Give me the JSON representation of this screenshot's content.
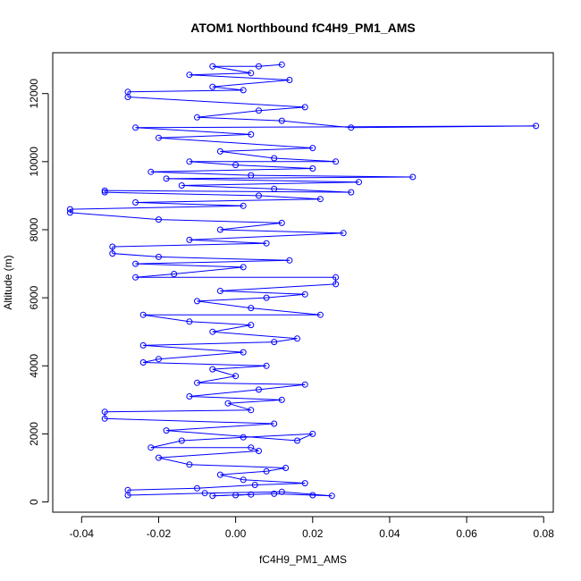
{
  "chart_data": {
    "type": "scatter",
    "title": "ATOM1 Northbound fC4H9_PM1_AMS",
    "xlabel": "fC4H9_PM1_AMS",
    "ylabel": "Altitude (m)",
    "xlim": [
      -0.0475,
      0.0825
    ],
    "ylim": [
      -300,
      13200
    ],
    "x_ticks": [
      -0.04,
      -0.02,
      0.0,
      0.02,
      0.04,
      0.06,
      0.08
    ],
    "x_tick_labels": [
      "-0.04",
      "-0.02",
      "0.00",
      "0.02",
      "0.04",
      "0.06",
      "0.08"
    ],
    "y_ticks": [
      0,
      2000,
      4000,
      6000,
      8000,
      10000,
      12000
    ],
    "y_tick_labels": [
      "0",
      "2000",
      "4000",
      "6000",
      "8000",
      "10000",
      "12000"
    ],
    "grid": false,
    "marker": "open-circle",
    "connected": true,
    "color": "#0000ff",
    "series": [
      {
        "values": [
          [
            0.0,
            200
          ],
          [
            0.004,
            220
          ],
          [
            -0.006,
            180
          ],
          [
            0.01,
            240
          ],
          [
            0.02,
            200
          ],
          [
            0.025,
            180
          ],
          [
            0.012,
            300
          ],
          [
            -0.008,
            260
          ],
          [
            -0.028,
            200
          ],
          [
            -0.028,
            350
          ],
          [
            -0.01,
            400
          ],
          [
            0.005,
            500
          ],
          [
            0.018,
            550
          ],
          [
            0.002,
            650
          ],
          [
            -0.004,
            800
          ],
          [
            0.008,
            900
          ],
          [
            0.013,
            1000
          ],
          [
            -0.012,
            1100
          ],
          [
            -0.02,
            1300
          ],
          [
            0.006,
            1500
          ],
          [
            0.004,
            1600
          ],
          [
            -0.022,
            1600
          ],
          [
            -0.014,
            1800
          ],
          [
            0.002,
            1900
          ],
          [
            0.02,
            2000
          ],
          [
            0.016,
            1800
          ],
          [
            -0.018,
            2100
          ],
          [
            0.01,
            2300
          ],
          [
            -0.034,
            2450
          ],
          [
            -0.034,
            2650
          ],
          [
            0.004,
            2700
          ],
          [
            -0.002,
            2900
          ],
          [
            0.012,
            3000
          ],
          [
            -0.012,
            3100
          ],
          [
            0.006,
            3300
          ],
          [
            0.018,
            3450
          ],
          [
            -0.01,
            3500
          ],
          [
            0.0,
            3700
          ],
          [
            -0.006,
            3900
          ],
          [
            0.008,
            4000
          ],
          [
            -0.024,
            4100
          ],
          [
            -0.02,
            4200
          ],
          [
            0.002,
            4400
          ],
          [
            -0.024,
            4600
          ],
          [
            0.01,
            4700
          ],
          [
            0.016,
            4800
          ],
          [
            -0.006,
            5000
          ],
          [
            0.004,
            5200
          ],
          [
            -0.012,
            5300
          ],
          [
            -0.024,
            5500
          ],
          [
            0.022,
            5500
          ],
          [
            0.004,
            5700
          ],
          [
            -0.01,
            5900
          ],
          [
            0.008,
            6000
          ],
          [
            0.018,
            6100
          ],
          [
            -0.004,
            6200
          ],
          [
            0.026,
            6400
          ],
          [
            0.026,
            6600
          ],
          [
            -0.026,
            6600
          ],
          [
            -0.016,
            6700
          ],
          [
            0.002,
            6900
          ],
          [
            -0.026,
            7000
          ],
          [
            0.014,
            7100
          ],
          [
            -0.02,
            7200
          ],
          [
            -0.032,
            7300
          ],
          [
            -0.032,
            7500
          ],
          [
            0.008,
            7600
          ],
          [
            -0.012,
            7700
          ],
          [
            0.028,
            7900
          ],
          [
            -0.004,
            8000
          ],
          [
            0.012,
            8200
          ],
          [
            -0.02,
            8300
          ],
          [
            -0.043,
            8500
          ],
          [
            -0.043,
            8600
          ],
          [
            0.002,
            8700
          ],
          [
            -0.026,
            8800
          ],
          [
            0.022,
            8900
          ],
          [
            0.006,
            9000
          ],
          [
            -0.034,
            9100
          ],
          [
            -0.034,
            9150
          ],
          [
            0.03,
            9100
          ],
          [
            0.01,
            9200
          ],
          [
            -0.014,
            9300
          ],
          [
            0.032,
            9400
          ],
          [
            -0.018,
            9500
          ],
          [
            0.046,
            9550
          ],
          [
            0.004,
            9600
          ],
          [
            -0.022,
            9700
          ],
          [
            0.02,
            9800
          ],
          [
            0.0,
            9900
          ],
          [
            -0.012,
            10000
          ],
          [
            0.026,
            10000
          ],
          [
            0.01,
            10100
          ],
          [
            -0.004,
            10300
          ],
          [
            0.02,
            10400
          ],
          [
            -0.02,
            10700
          ],
          [
            0.004,
            10800
          ],
          [
            -0.026,
            11000
          ],
          [
            0.078,
            11050
          ],
          [
            0.03,
            11000
          ],
          [
            0.012,
            11200
          ],
          [
            -0.01,
            11300
          ],
          [
            0.006,
            11500
          ],
          [
            0.018,
            11600
          ],
          [
            -0.028,
            11900
          ],
          [
            -0.028,
            12050
          ],
          [
            0.002,
            12100
          ],
          [
            -0.006,
            12200
          ],
          [
            0.014,
            12400
          ],
          [
            -0.012,
            12550
          ],
          [
            0.004,
            12600
          ],
          [
            -0.006,
            12800
          ],
          [
            0.006,
            12800
          ],
          [
            0.012,
            12850
          ]
        ]
      }
    ]
  }
}
